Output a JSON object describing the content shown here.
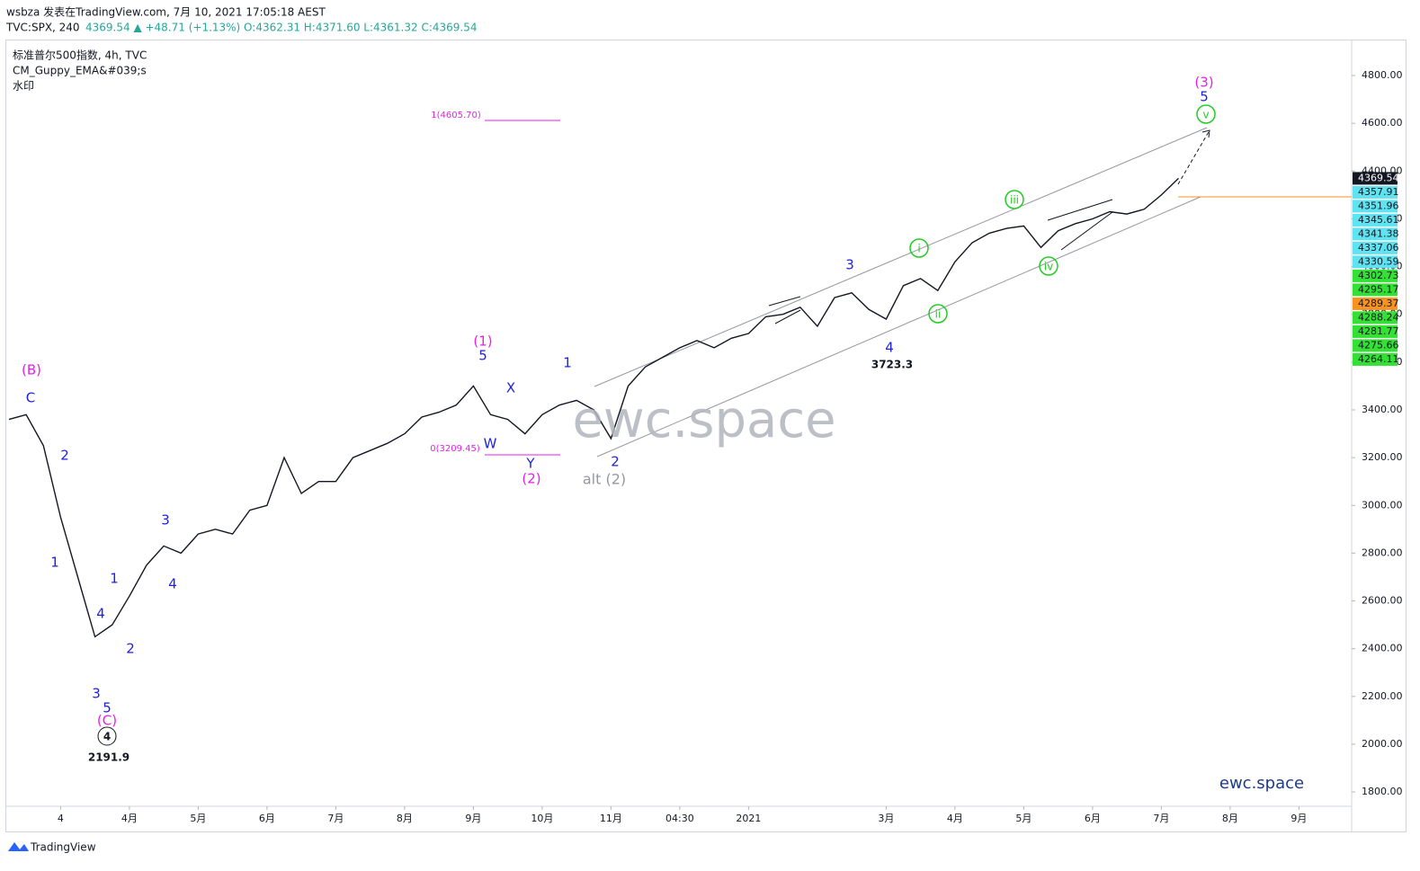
{
  "header": {
    "byline": "wsbza 发表在TradingView.com, 7月 10, 2021 17:05:18 AEST",
    "symbol": "TVC:SPX, 240",
    "quote": "4369.54 ▲ +48.71 (+1.13%) O:4362.31 H:4371.60 L:4361.32 C:4369.54"
  },
  "legend": [
    "标准普尔500指数, 4h, TVC",
    "CM_Guppy_EMA&#039;s",
    "水印"
  ],
  "footer": {
    "brand": "TradingView"
  },
  "chart_data": {
    "type": "line",
    "color": "#131722",
    "categories": [
      null,
      null,
      null,
      "4",
      null,
      null,
      null,
      "4月",
      null,
      null,
      null,
      "5月",
      null,
      null,
      null,
      "6月",
      null,
      null,
      null,
      "7月",
      null,
      null,
      null,
      "8月",
      null,
      null,
      null,
      "9月",
      null,
      null,
      null,
      "10月",
      null,
      null,
      null,
      "11月",
      null,
      null,
      null,
      "04:30",
      null,
      null,
      null,
      "2021",
      null,
      null,
      null,
      null,
      null,
      null,
      null,
      "3月",
      null,
      null,
      null,
      "4月",
      null,
      null,
      null,
      "5月",
      null,
      null,
      null,
      "6月",
      null,
      null,
      null,
      "7月",
      null,
      null,
      null,
      "8月",
      null,
      null,
      null,
      "9月",
      null,
      null,
      null
    ],
    "values": [
      3360,
      3380,
      3250,
      2950,
      2700,
      2450,
      2500,
      2620,
      2750,
      2830,
      2800,
      2880,
      2900,
      2880,
      2980,
      3000,
      3200,
      3050,
      3100,
      3100,
      3200,
      3230,
      3260,
      3300,
      3370,
      3390,
      3420,
      3500,
      3380,
      3360,
      3300,
      3380,
      3420,
      3440,
      3400,
      3280,
      3500,
      3580,
      3620,
      3660,
      3690,
      3660,
      3700,
      3720,
      3790,
      3800,
      3830,
      3750,
      3870,
      3890,
      3820,
      3780,
      3920,
      3950,
      3900,
      4020,
      4100,
      4140,
      4160,
      4170,
      4080,
      4150,
      4180,
      4200,
      4230,
      4220,
      4240,
      4300,
      4369.54,
      null,
      null,
      null,
      null,
      null,
      null,
      null,
      null,
      null,
      null
    ],
    "ylim": [
      1740,
      4947
    ],
    "yticks": [
      {
        "value": 1800,
        "label": "1800.00"
      },
      {
        "value": 2000,
        "label": "2000.00"
      },
      {
        "value": 2200,
        "label": "2200.00"
      },
      {
        "value": 2400,
        "label": "2400.00"
      },
      {
        "value": 2600,
        "label": "2600.00"
      },
      {
        "value": 2800,
        "label": "2800.00"
      },
      {
        "value": 3000,
        "label": "3000.00"
      },
      {
        "value": 3200,
        "label": "3200.00"
      },
      {
        "value": 3400,
        "label": "3400.00"
      },
      {
        "value": 3600,
        "label": "3600.00"
      },
      {
        "value": 3800,
        "label": "3800.00"
      },
      {
        "value": 4000,
        "label": "4000.00"
      },
      {
        "value": 4200,
        "label": "4200.00"
      },
      {
        "value": 4400,
        "label": "4400.00"
      },
      {
        "value": 4600,
        "label": "4600.00"
      },
      {
        "value": 4800,
        "label": "4800.00"
      }
    ],
    "price_tags": [
      {
        "value": 4369.54,
        "color": "#131722"
      },
      {
        "value": 4357.91,
        "color": "#5fe3f0"
      },
      {
        "value": 4351.96,
        "color": "#5fe3f0"
      },
      {
        "value": 4345.61,
        "color": "#5fe3f0"
      },
      {
        "value": 4341.38,
        "color": "#5fe3f0"
      },
      {
        "value": 4337.06,
        "color": "#5fe3f0"
      },
      {
        "value": 4330.59,
        "color": "#5fe3f0"
      },
      {
        "value": 4302.73,
        "color": "#33e033"
      },
      {
        "value": 4295.17,
        "color": "#33e033"
      },
      {
        "value": 4289.37,
        "color": "#f7931e"
      },
      {
        "value": 4288.24,
        "color": "#33e033"
      },
      {
        "value": 4281.77,
        "color": "#33e033"
      },
      {
        "value": 4275.66,
        "color": "#33e033"
      },
      {
        "value": 4264.11,
        "color": "#33e033"
      }
    ],
    "annotations": [
      "(B)",
      "C",
      "2",
      "1",
      "3",
      "4",
      "5",
      "(C)",
      "4",
      "2191.9",
      "1",
      "2",
      "3",
      "4",
      "(1)",
      "5",
      "X",
      "W",
      "Y",
      "(2)",
      "1",
      "2",
      "alt (2)",
      "3",
      "4",
      "3723.3",
      "i",
      "ii",
      "iii",
      "iv",
      "(3)",
      "5",
      "v",
      "1(4605.70)",
      "0(3209.45)",
      "ewc.space",
      "ewc.space"
    ]
  }
}
